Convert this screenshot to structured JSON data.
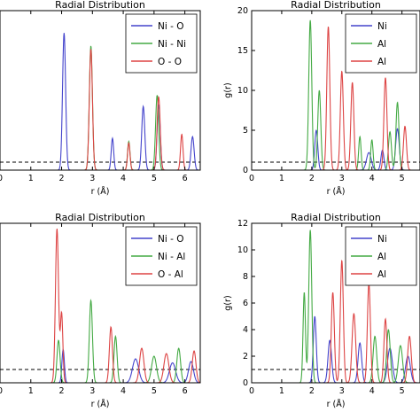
{
  "chart_data": [
    {
      "type": "line",
      "title": "Radial Distribution",
      "xlabel": "r (Å)",
      "ylabel": "",
      "xlim": [
        0,
        6.5
      ],
      "ylim": [
        0,
        20
      ],
      "xticks": [
        "0",
        "1",
        "2",
        "3",
        "4",
        "5",
        "6"
      ],
      "yticks": [],
      "reference_line": 1,
      "legend": "top-right",
      "series": [
        {
          "name": "Ni - O",
          "color": "#4444cc",
          "peaks": [
            [
              2.08,
              17.2,
              0.05
            ],
            [
              3.65,
              4.0,
              0.04
            ],
            [
              4.65,
              8.0,
              0.05
            ],
            [
              5.15,
              8.2,
              0.05
            ],
            [
              6.25,
              4.2,
              0.05
            ]
          ]
        },
        {
          "name": "Ni - Ni",
          "color": "#44aa44",
          "peaks": [
            [
              2.95,
              15.6,
              0.05
            ],
            [
              4.18,
              3.6,
              0.04
            ],
            [
              5.1,
              9.4,
              0.05
            ]
          ]
        },
        {
          "name": "O - O",
          "color": "#dd4444",
          "peaks": [
            [
              2.95,
              15.2,
              0.05
            ],
            [
              4.18,
              3.4,
              0.04
            ],
            [
              5.15,
              9.2,
              0.05
            ],
            [
              5.9,
              4.5,
              0.04
            ]
          ]
        }
      ]
    },
    {
      "type": "line",
      "title": "Radial Distribution",
      "xlabel": "r (Å)",
      "ylabel": "g(r)",
      "xlim": [
        0,
        5.6
      ],
      "ylim": [
        0,
        20
      ],
      "xticks": [
        "0",
        "1",
        "2",
        "3",
        "4",
        "5"
      ],
      "yticks": [
        "0",
        "5",
        "10",
        "15",
        "20"
      ],
      "reference_line": 1,
      "legend": "top-right",
      "series": [
        {
          "name": "Ni",
          "color": "#4444cc",
          "peaks": [
            [
              2.15,
              5.0,
              0.05
            ],
            [
              3.9,
              2.2,
              0.08
            ],
            [
              4.35,
              2.5,
              0.05
            ],
            [
              4.85,
              5.2,
              0.06
            ]
          ]
        },
        {
          "name": "Al",
          "color": "#44aa44",
          "peaks": [
            [
              1.95,
              18.8,
              0.05
            ],
            [
              2.25,
              10.0,
              0.05
            ],
            [
              3.6,
              4.2,
              0.04
            ],
            [
              4.0,
              3.8,
              0.04
            ],
            [
              4.6,
              4.8,
              0.05
            ],
            [
              4.85,
              8.5,
              0.05
            ]
          ]
        },
        {
          "name": "Al",
          "color": "#dd4444",
          "peaks": [
            [
              2.55,
              18.0,
              0.05
            ],
            [
              3.0,
              12.4,
              0.05
            ],
            [
              3.35,
              11.0,
              0.05
            ],
            [
              4.45,
              11.6,
              0.05
            ],
            [
              5.1,
              5.5,
              0.05
            ]
          ]
        }
      ]
    },
    {
      "type": "line",
      "title": "Radial Distribution",
      "xlabel": "r (Å)",
      "ylabel": "",
      "xlim": [
        0,
        6.5
      ],
      "ylim": [
        0,
        12
      ],
      "xticks": [
        "0",
        "1",
        "2",
        "3",
        "4",
        "5",
        "6"
      ],
      "yticks": [],
      "reference_line": 1,
      "legend": "top-right",
      "series": [
        {
          "name": "Ni - O",
          "color": "#4444cc",
          "peaks": [
            [
              2.05,
              2.5,
              0.04
            ],
            [
              4.4,
              1.8,
              0.1
            ],
            [
              5.6,
              1.5,
              0.1
            ],
            [
              6.2,
              1.6,
              0.08
            ]
          ]
        },
        {
          "name": "Ni - Al",
          "color": "#44aa44",
          "peaks": [
            [
              1.9,
              3.2,
              0.05
            ],
            [
              2.95,
              6.2,
              0.05
            ],
            [
              3.75,
              3.5,
              0.05
            ],
            [
              5.0,
              2.0,
              0.08
            ],
            [
              5.8,
              2.6,
              0.06
            ]
          ]
        },
        {
          "name": "O - Al",
          "color": "#dd4444",
          "peaks": [
            [
              1.85,
              11.6,
              0.05
            ],
            [
              2.0,
              5.2,
              0.04
            ],
            [
              3.6,
              4.2,
              0.05
            ],
            [
              4.6,
              2.6,
              0.07
            ],
            [
              5.4,
              2.2,
              0.08
            ],
            [
              6.3,
              2.4,
              0.06
            ]
          ]
        }
      ]
    },
    {
      "type": "line",
      "title": "Radial Distribution",
      "xlabel": "r (Å)",
      "ylabel": "g(r)",
      "xlim": [
        0,
        5.6
      ],
      "ylim": [
        0,
        12
      ],
      "xticks": [
        "0",
        "1",
        "2",
        "3",
        "4",
        "5"
      ],
      "yticks": [
        "0",
        "2",
        "4",
        "6",
        "8",
        "10",
        "12"
      ],
      "reference_line": 1,
      "legend": "top-right",
      "series": [
        {
          "name": "Ni",
          "color": "#4444cc",
          "peaks": [
            [
              2.1,
              5.0,
              0.05
            ],
            [
              2.6,
              3.2,
              0.06
            ],
            [
              3.6,
              3.0,
              0.06
            ],
            [
              4.6,
              2.6,
              0.08
            ],
            [
              5.2,
              2.0,
              0.08
            ]
          ]
        },
        {
          "name": "Al",
          "color": "#44aa44",
          "peaks": [
            [
              1.75,
              6.8,
              0.04
            ],
            [
              1.95,
              11.5,
              0.05
            ],
            [
              4.1,
              3.5,
              0.06
            ],
            [
              4.55,
              4.0,
              0.06
            ],
            [
              4.95,
              2.8,
              0.07
            ]
          ]
        },
        {
          "name": "Al",
          "color": "#dd4444",
          "peaks": [
            [
              2.7,
              6.8,
              0.05
            ],
            [
              3.0,
              9.2,
              0.05
            ],
            [
              3.4,
              5.2,
              0.06
            ],
            [
              3.9,
              7.5,
              0.05
            ],
            [
              4.45,
              4.8,
              0.05
            ],
            [
              5.25,
              3.5,
              0.06
            ]
          ]
        }
      ]
    }
  ]
}
